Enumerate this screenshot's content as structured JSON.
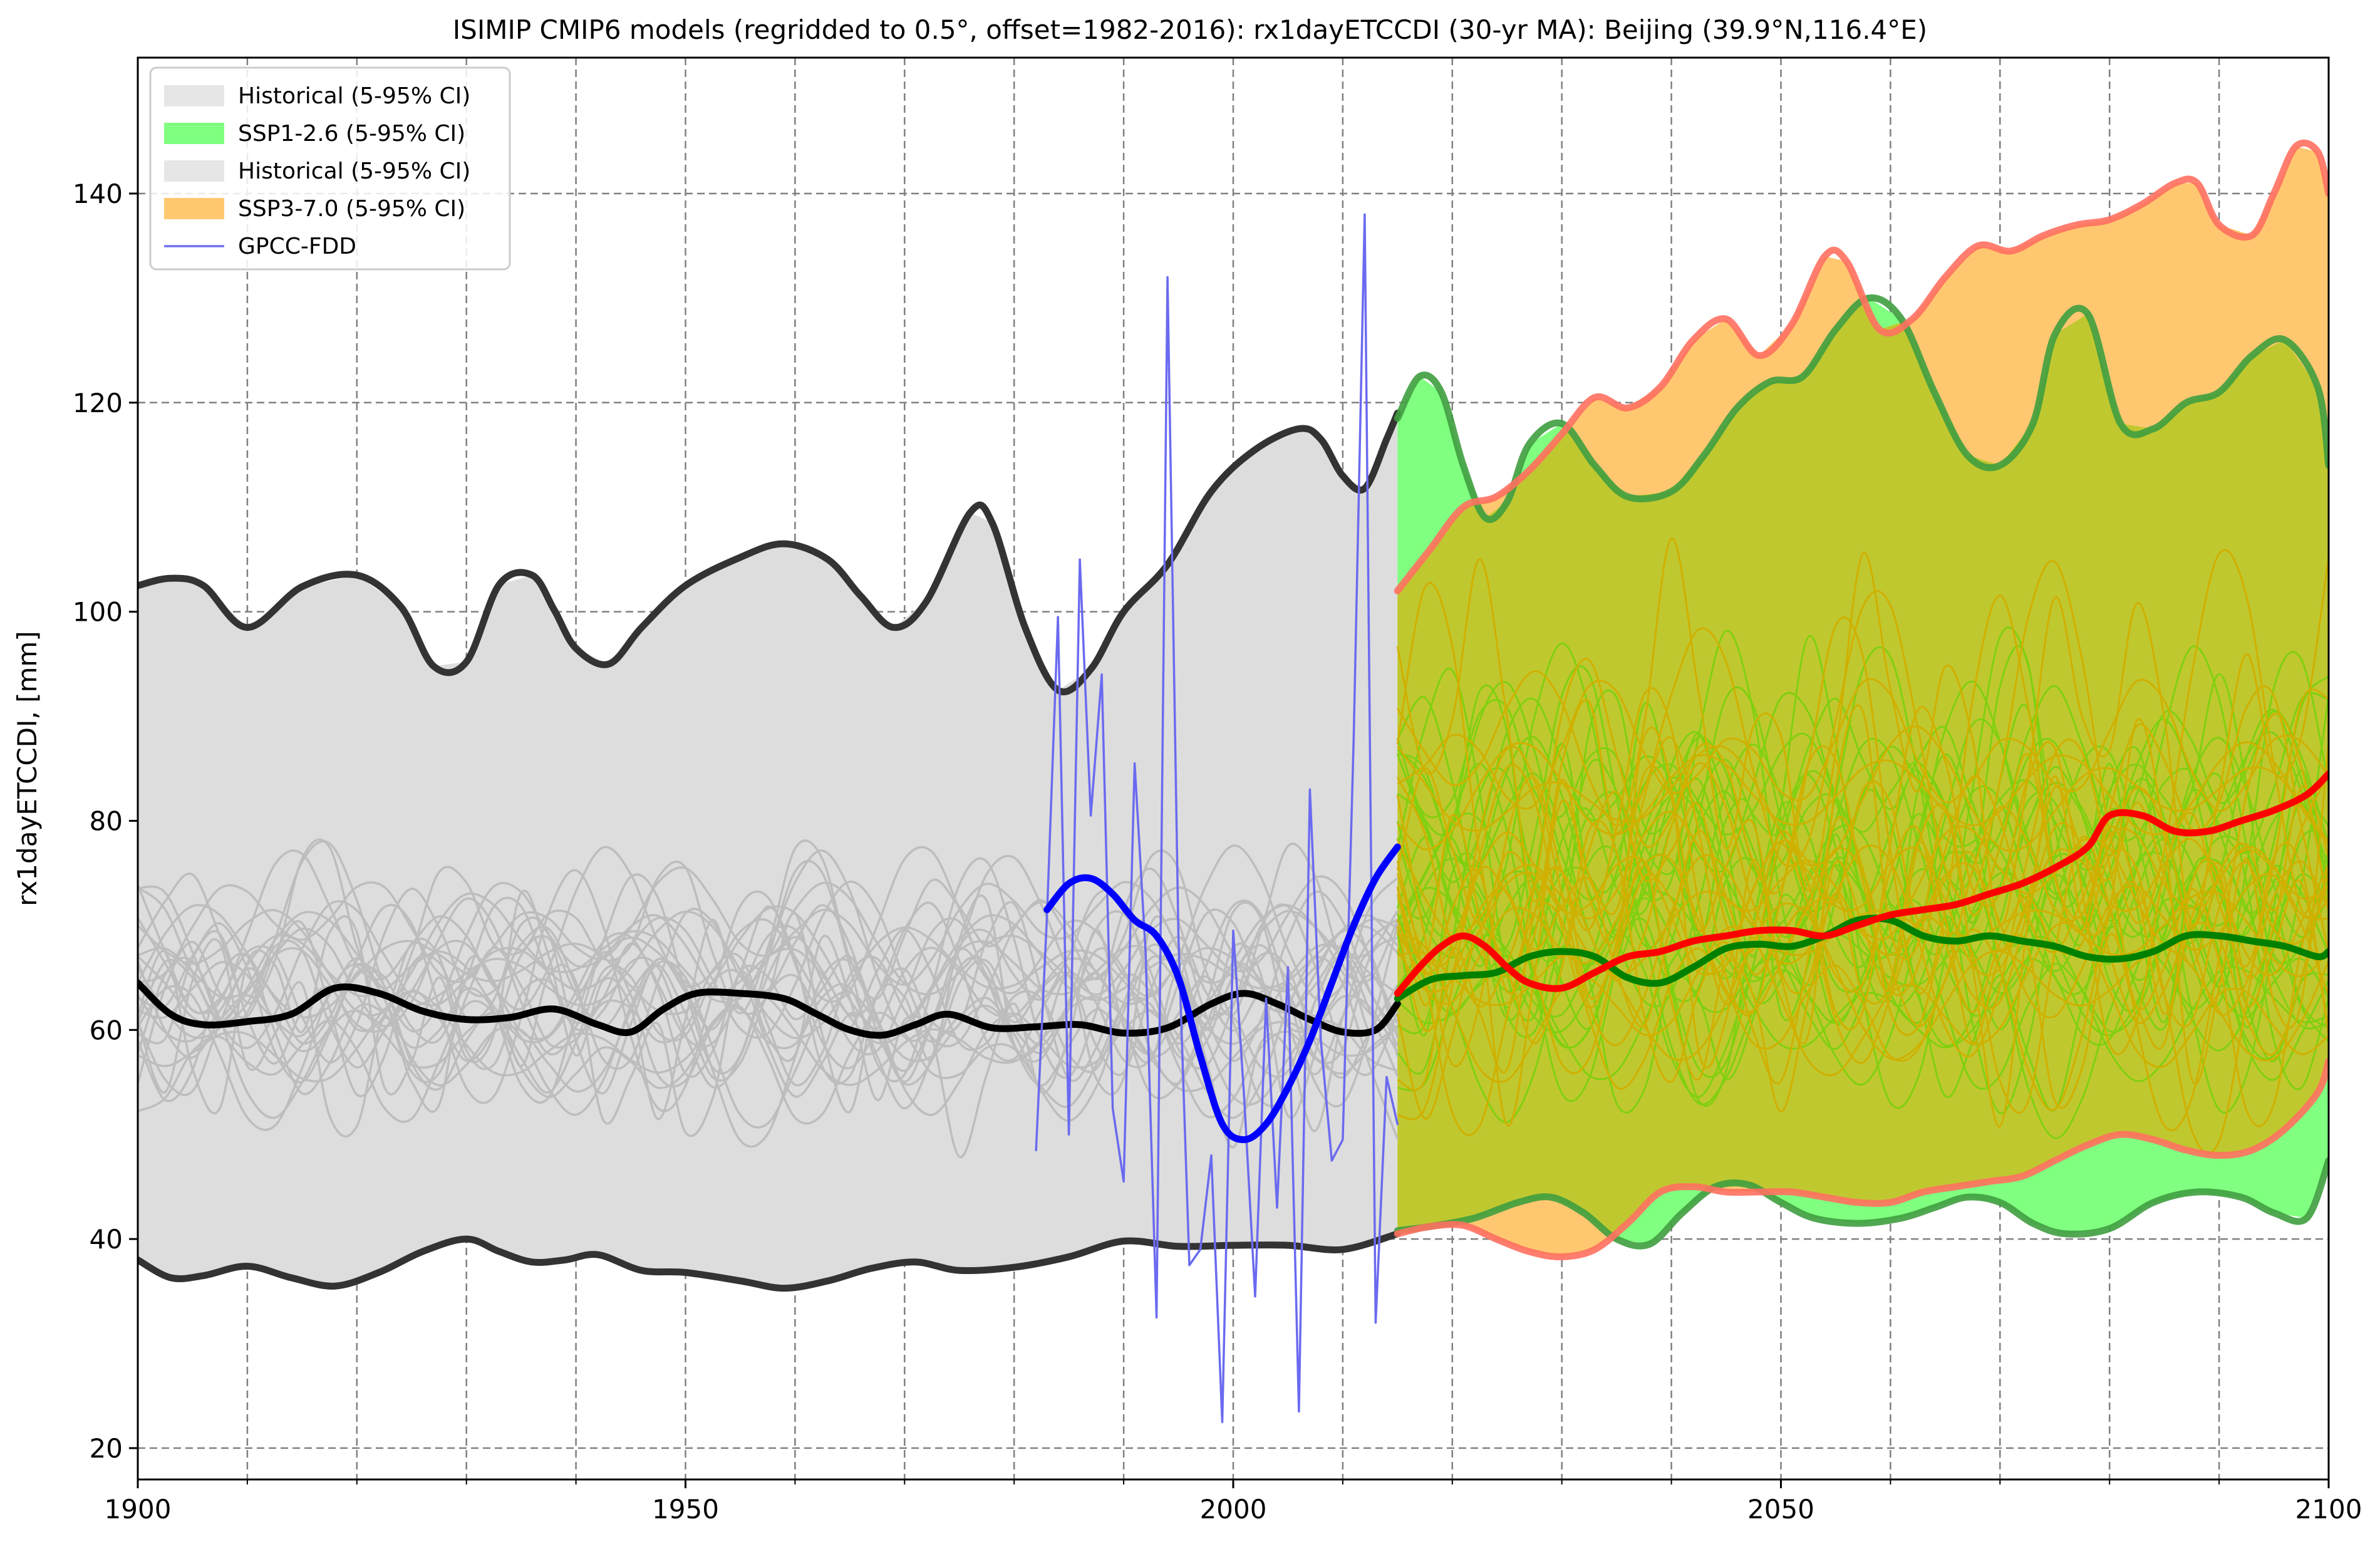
{
  "chart_data": {
    "type": "line",
    "title": "ISIMIP CMIP6 models (regridded to 0.5°, offset=1982-2016): rx1dayETCCDI (30-yr MA): Beijing (39.9°N,116.4°E)",
    "xlabel": "",
    "ylabel": "rx1dayETCCDI, [mm]",
    "xlim": [
      1900,
      2100
    ],
    "ylim": [
      17,
      153
    ],
    "x_ticks": [
      1900,
      1950,
      2000,
      2050,
      2100
    ],
    "y_ticks": [
      20,
      40,
      60,
      80,
      100,
      120,
      140
    ],
    "x_minor_ticks": [
      1910,
      1920,
      1930,
      1940,
      1960,
      1970,
      1980,
      1990,
      2010,
      2020,
      2030,
      2040,
      2060,
      2070,
      2080,
      2090
    ],
    "grid": true,
    "legend_position": "top-left",
    "legend": [
      {
        "label": "Historical (5-95% CI)",
        "color": "#e6e6e6",
        "kind": "patch"
      },
      {
        "label": "SSP1-2.6 (5-95% CI)",
        "color": "#80ff80",
        "kind": "patch"
      },
      {
        "label": "Historical (5-95% CI)",
        "color": "#e6e6e6",
        "kind": "patch"
      },
      {
        "label": "SSP3-7.0 (5-95% CI)",
        "color": "#ffc870",
        "kind": "patch"
      },
      {
        "label": "GPCC-FDD",
        "color": "#7070f0",
        "kind": "line"
      }
    ],
    "colors": {
      "historical_band": "#dddddd",
      "historical_bound": "#333333",
      "historical_median": "#000000",
      "historical_member": "#bdbdbd",
      "ssp126_band": "#80ff80",
      "ssp126_bound": "#3f9f3f",
      "ssp126_median": "#008000",
      "ssp126_member": "#80d010",
      "ssp370_band": "#ffc870",
      "ssp370_bound": "#ff7060",
      "ssp370_median": "#ff0000",
      "ssp370_member": "#d0b000",
      "overlap_band": "#c0c830",
      "gpcc_raw": "#6a6af0",
      "gpcc_smooth": "#0000ff"
    },
    "series": [
      {
        "name": "Historical (5-95% CI)",
        "role": "historical_upper",
        "x": [
          1900,
          1903,
          1906,
          1910,
          1915,
          1920,
          1924,
          1927,
          1930,
          1933,
          1936,
          1938,
          1940,
          1943,
          1946,
          1950,
          1955,
          1959,
          1963,
          1966,
          1969,
          1972,
          1976,
          1978,
          1981,
          1984,
          1987,
          1990,
          1994,
          1998,
          2002,
          2006,
          2008,
          2010,
          2012,
          2014,
          2015
        ],
        "y": [
          102.5,
          103.2,
          102.5,
          98.5,
          102.4,
          103.5,
          100.5,
          94.8,
          95.2,
          102.6,
          103.5,
          100.2,
          96.5,
          95.0,
          98.5,
          102.5,
          105.2,
          106.5,
          105.0,
          101.5,
          98.5,
          101.0,
          109.5,
          108.5,
          98.5,
          92.5,
          94.5,
          100.0,
          104.5,
          111.5,
          115.5,
          117.5,
          116.5,
          113.0,
          111.8,
          116.5,
          119.0
        ]
      },
      {
        "name": "Historical (5-95% CI)",
        "role": "historical_lower",
        "x": [
          1900,
          1903,
          1906,
          1910,
          1914,
          1918,
          1922,
          1926,
          1930,
          1933,
          1936,
          1939,
          1942,
          1946,
          1950,
          1955,
          1959,
          1963,
          1967,
          1971,
          1975,
          1980,
          1985,
          1990,
          1995,
          2000,
          2005,
          2010,
          2015
        ],
        "y": [
          38.0,
          36.3,
          36.5,
          37.4,
          36.3,
          35.5,
          36.8,
          38.8,
          40.0,
          38.8,
          37.8,
          38.0,
          38.5,
          37.0,
          36.8,
          36.0,
          35.3,
          36.0,
          37.2,
          37.8,
          37.0,
          37.3,
          38.3,
          39.8,
          39.3,
          39.4,
          39.4,
          39.0,
          40.5
        ]
      },
      {
        "name": "Historical median",
        "role": "historical_median",
        "x": [
          1900,
          1903,
          1906,
          1910,
          1914,
          1918,
          1922,
          1926,
          1930,
          1934,
          1938,
          1942,
          1945,
          1948,
          1951,
          1955,
          1959,
          1962,
          1965,
          1968,
          1971,
          1974,
          1978,
          1982,
          1986,
          1990,
          1994,
          1998,
          2001,
          2004,
          2007,
          2010,
          2013,
          2015
        ],
        "y": [
          64.5,
          61.5,
          60.5,
          60.8,
          61.5,
          64.0,
          63.5,
          61.8,
          61.0,
          61.2,
          62.0,
          60.5,
          59.8,
          62.0,
          63.5,
          63.5,
          63.0,
          61.5,
          60.0,
          59.5,
          60.5,
          61.5,
          60.2,
          60.3,
          60.5,
          59.7,
          60.2,
          62.5,
          63.5,
          62.5,
          61.0,
          59.8,
          60.0,
          62.5
        ]
      },
      {
        "name": "SSP1-2.6 (5-95% CI)",
        "role": "ssp126_upper",
        "x": [
          2015,
          2017,
          2019,
          2021,
          2023,
          2025,
          2027,
          2030,
          2033,
          2036,
          2040,
          2043,
          2046,
          2049,
          2052,
          2055,
          2058,
          2061,
          2064,
          2067,
          2070,
          2073,
          2075,
          2078,
          2081,
          2084,
          2087,
          2090,
          2093,
          2096,
          2099,
          2100
        ],
        "y": [
          118.5,
          122.5,
          121.0,
          114.0,
          109.0,
          110.5,
          116.0,
          118.0,
          114.0,
          111.0,
          111.5,
          115.0,
          119.5,
          122.0,
          122.5,
          127.0,
          130.0,
          128.0,
          121.0,
          115.0,
          114.0,
          118.0,
          126.5,
          128.5,
          118.0,
          117.5,
          120.0,
          121.0,
          124.5,
          126.0,
          121.5,
          114.0
        ]
      },
      {
        "name": "SSP1-2.6 (5-95% CI)",
        "role": "ssp126_lower",
        "x": [
          2015,
          2018,
          2022,
          2026,
          2029,
          2032,
          2035,
          2038,
          2041,
          2044,
          2047,
          2050,
          2053,
          2057,
          2061,
          2064,
          2067,
          2070,
          2073,
          2076,
          2080,
          2084,
          2088,
          2092,
          2095,
          2098,
          2100
        ],
        "y": [
          40.8,
          41.2,
          42.0,
          43.5,
          44.0,
          42.5,
          40.0,
          39.5,
          42.5,
          45.0,
          45.2,
          43.5,
          42.0,
          41.5,
          42.0,
          43.0,
          44.0,
          43.5,
          41.5,
          40.5,
          41.0,
          43.5,
          44.5,
          44.0,
          42.5,
          42.0,
          47.5
        ]
      },
      {
        "name": "SSP1-2.6 median",
        "role": "ssp126_median",
        "x": [
          2015,
          2018,
          2021,
          2024,
          2027,
          2030,
          2033,
          2036,
          2039,
          2042,
          2045,
          2048,
          2051,
          2054,
          2057,
          2060,
          2063,
          2066,
          2069,
          2072,
          2075,
          2078,
          2081,
          2084,
          2087,
          2090,
          2093,
          2096,
          2099,
          2100
        ],
        "y": [
          63.0,
          64.8,
          65.2,
          65.5,
          67.0,
          67.5,
          67.0,
          65.0,
          64.5,
          66.0,
          67.8,
          68.2,
          68.0,
          69.0,
          70.5,
          70.5,
          69.0,
          68.5,
          69.0,
          68.5,
          68.0,
          67.0,
          66.8,
          67.5,
          69.0,
          69.0,
          68.5,
          68.0,
          67.0,
          67.5
        ]
      },
      {
        "name": "SSP3-7.0 (5-95% CI)",
        "role": "ssp370_upper",
        "x": [
          2015,
          2018,
          2021,
          2024,
          2027,
          2030,
          2033,
          2036,
          2039,
          2042,
          2045,
          2048,
          2051,
          2054,
          2056,
          2059,
          2062,
          2065,
          2068,
          2071,
          2074,
          2077,
          2080,
          2083,
          2086,
          2088,
          2090,
          2093,
          2095,
          2097,
          2099,
          2100
        ],
        "y": [
          102.0,
          106.0,
          110.0,
          111.0,
          113.5,
          117.0,
          120.5,
          119.5,
          121.5,
          126.0,
          128.0,
          124.5,
          127.5,
          134.0,
          133.5,
          127.0,
          128.0,
          132.0,
          135.0,
          134.5,
          136.0,
          137.0,
          137.5,
          139.0,
          141.0,
          141.0,
          137.0,
          136.0,
          140.0,
          144.5,
          144.0,
          140.0
        ]
      },
      {
        "name": "SSP3-7.0 (5-95% CI)",
        "role": "ssp370_lower",
        "x": [
          2015,
          2018,
          2021,
          2024,
          2027,
          2030,
          2033,
          2036,
          2039,
          2042,
          2045,
          2048,
          2051,
          2054,
          2057,
          2060,
          2063,
          2066,
          2069,
          2072,
          2075,
          2078,
          2081,
          2084,
          2087,
          2090,
          2093,
          2096,
          2099,
          2100
        ],
        "y": [
          40.5,
          41.2,
          41.3,
          40.0,
          38.8,
          38.3,
          39.0,
          41.5,
          44.5,
          45.0,
          44.5,
          44.5,
          44.5,
          44.0,
          43.5,
          43.5,
          44.5,
          45.0,
          45.5,
          46.0,
          47.5,
          49.0,
          50.0,
          49.5,
          48.5,
          48.0,
          48.5,
          50.5,
          54.0,
          57.0
        ]
      },
      {
        "name": "SSP3-7.0 median",
        "role": "ssp370_median",
        "x": [
          2015,
          2017,
          2019,
          2021,
          2023,
          2025,
          2027,
          2030,
          2033,
          2036,
          2039,
          2042,
          2045,
          2048,
          2051,
          2054,
          2057,
          2060,
          2063,
          2066,
          2069,
          2072,
          2075,
          2078,
          2080,
          2083,
          2086,
          2089,
          2092,
          2095,
          2098,
          2100
        ],
        "y": [
          63.5,
          66.0,
          68.0,
          69.0,
          68.0,
          66.0,
          64.5,
          64.0,
          65.5,
          67.0,
          67.5,
          68.5,
          69.0,
          69.5,
          69.5,
          69.0,
          70.0,
          71.0,
          71.5,
          72.0,
          73.0,
          74.0,
          75.5,
          77.5,
          80.5,
          80.5,
          79.0,
          79.0,
          80.0,
          81.0,
          82.5,
          84.5
        ]
      },
      {
        "name": "GPCC-FDD",
        "role": "gpcc_raw",
        "x": [
          1982,
          1983,
          1984,
          1985,
          1986,
          1987,
          1988,
          1989,
          1990,
          1991,
          1992,
          1993,
          1994,
          1995,
          1996,
          1997,
          1998,
          1999,
          2000,
          2001,
          2002,
          2003,
          2004,
          2005,
          2006,
          2007,
          2008,
          2009,
          2010,
          2011,
          2012,
          2013,
          2014,
          2015
        ],
        "y": [
          48.5,
          71.0,
          99.5,
          50.0,
          105.0,
          80.5,
          94.0,
          52.5,
          45.5,
          85.5,
          67.5,
          32.5,
          132.0,
          69.0,
          37.5,
          39.0,
          48.0,
          22.5,
          69.5,
          53.5,
          34.5,
          63.0,
          43.0,
          66.0,
          23.5,
          83.0,
          59.0,
          47.5,
          49.5,
          88.0,
          138.0,
          32.0,
          55.5,
          51.0
        ]
      },
      {
        "name": "GPCC-FDD (30-yr MA)",
        "role": "gpcc_smooth",
        "x": [
          1983,
          1985,
          1987,
          1989,
          1991,
          1993,
          1995,
          1997,
          1999,
          2001,
          2003,
          2005,
          2007,
          2009,
          2011,
          2013,
          2015
        ],
        "y": [
          71.5,
          74.0,
          74.5,
          73.0,
          70.5,
          69.0,
          65.0,
          57.5,
          51.0,
          49.5,
          51.0,
          54.5,
          59.0,
          64.5,
          70.0,
          74.5,
          77.5
        ]
      }
    ]
  }
}
